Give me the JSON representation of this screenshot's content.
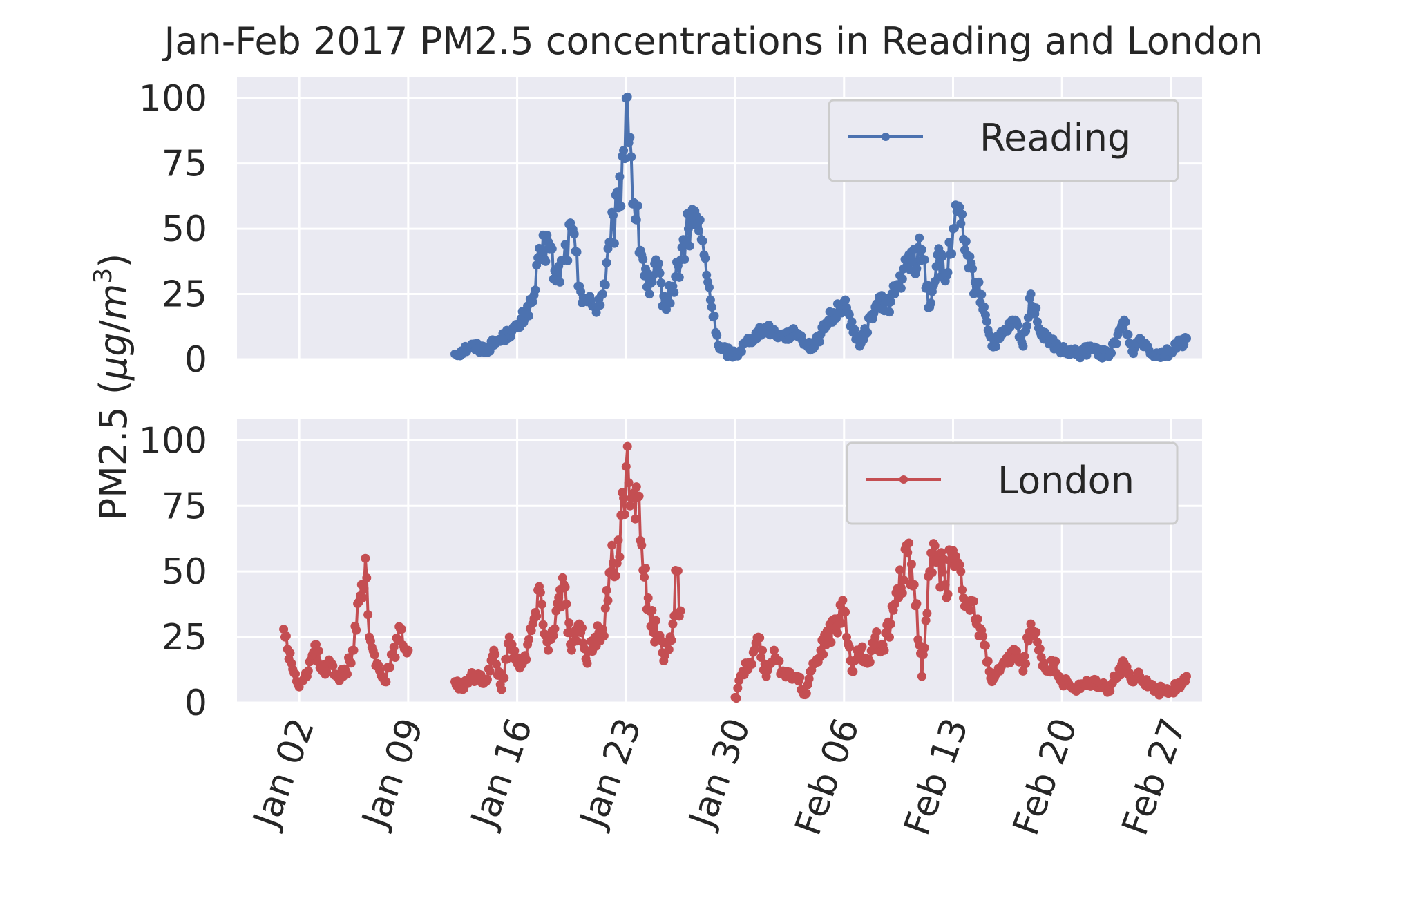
{
  "chart_data": {
    "type": "line",
    "title": "Jan-Feb 2017 PM2.5 concentrations in Reading and London",
    "ylabel": "PM2.5 (μg/m³)",
    "ylabel_parts": {
      "pre": "PM2.5 (",
      "mu": "μ",
      "g": "g",
      "slash": "/",
      "m": "m",
      "exp": "3",
      "post": ")"
    },
    "x_range": [
      "2016-12-29",
      "2017-03-01"
    ],
    "ylim": [
      0,
      108
    ],
    "y_ticks": [
      "0",
      "25",
      "50",
      "75",
      "100"
    ],
    "y_tick_values": [
      0,
      25,
      50,
      75,
      100
    ],
    "x_ticks": [
      {
        "label": "Jan 02",
        "date": "2017-01-02"
      },
      {
        "label": "Jan 09",
        "date": "2017-01-09"
      },
      {
        "label": "Jan 16",
        "date": "2017-01-16"
      },
      {
        "label": "Jan 23",
        "date": "2017-01-23"
      },
      {
        "label": "Jan 30",
        "date": "2017-01-30"
      },
      {
        "label": "Feb 06",
        "date": "2017-02-06"
      },
      {
        "label": "Feb 13",
        "date": "2017-02-13"
      },
      {
        "label": "Feb 20",
        "date": "2017-02-20"
      },
      {
        "label": "Feb 27",
        "date": "2017-02-27"
      }
    ],
    "grid": true,
    "legend_placement": "upper right",
    "series": [
      {
        "name": "Reading",
        "color": "#4c72b0",
        "anchors": [
          [
            "2017-01-12",
            2
          ],
          [
            "2017-01-13",
            5
          ],
          [
            "2017-01-14",
            4
          ],
          [
            "2017-01-15",
            8
          ],
          [
            "2017-01-16",
            12
          ],
          [
            "2017-01-17",
            22
          ],
          [
            "2017-01-17T12:00",
            40
          ],
          [
            "2017-01-18",
            45
          ],
          [
            "2017-01-18T12:00",
            30
          ],
          [
            "2017-01-19",
            38
          ],
          [
            "2017-01-19T12:00",
            50
          ],
          [
            "2017-01-20",
            28
          ],
          [
            "2017-01-20T12:00",
            22
          ],
          [
            "2017-01-21",
            20
          ],
          [
            "2017-01-21T12:00",
            25
          ],
          [
            "2017-01-22",
            45
          ],
          [
            "2017-01-22T12:00",
            58
          ],
          [
            "2017-01-22T20:00",
            80
          ],
          [
            "2017-01-23",
            100
          ],
          [
            "2017-01-23T06:00",
            85
          ],
          [
            "2017-01-23T12:00",
            60
          ],
          [
            "2017-01-24",
            40
          ],
          [
            "2017-01-24T12:00",
            25
          ],
          [
            "2017-01-25",
            35
          ],
          [
            "2017-01-25T12:00",
            20
          ],
          [
            "2017-01-26",
            28
          ],
          [
            "2017-01-26T12:00",
            38
          ],
          [
            "2017-01-27",
            50
          ],
          [
            "2017-01-27T12:00",
            55
          ],
          [
            "2017-01-28",
            40
          ],
          [
            "2017-01-28T12:00",
            20
          ],
          [
            "2017-01-29",
            4
          ],
          [
            "2017-01-30",
            2
          ],
          [
            "2017-01-31",
            8
          ],
          [
            "2017-02-01",
            12
          ],
          [
            "2017-02-02",
            9
          ],
          [
            "2017-02-03",
            10
          ],
          [
            "2017-02-04",
            4
          ],
          [
            "2017-02-05",
            15
          ],
          [
            "2017-02-06",
            22
          ],
          [
            "2017-02-07",
            5
          ],
          [
            "2017-02-08",
            20
          ],
          [
            "2017-02-09",
            22
          ],
          [
            "2017-02-10",
            35
          ],
          [
            "2017-02-11",
            42
          ],
          [
            "2017-02-11T12:00",
            20
          ],
          [
            "2017-02-12",
            40
          ],
          [
            "2017-02-12T12:00",
            30
          ],
          [
            "2017-02-13",
            50
          ],
          [
            "2017-02-13T12:00",
            52
          ],
          [
            "2017-02-14",
            35
          ],
          [
            "2017-02-14T12:00",
            28
          ],
          [
            "2017-02-15",
            20
          ],
          [
            "2017-02-15T12:00",
            5
          ],
          [
            "2017-02-16",
            8
          ],
          [
            "2017-02-17",
            15
          ],
          [
            "2017-02-17T12:00",
            5
          ],
          [
            "2017-02-18",
            25
          ],
          [
            "2017-02-18T12:00",
            12
          ],
          [
            "2017-02-19",
            8
          ],
          [
            "2017-02-20",
            3
          ],
          [
            "2017-02-21",
            2
          ],
          [
            "2017-02-22",
            4
          ],
          [
            "2017-02-23",
            1
          ],
          [
            "2017-02-24",
            15
          ],
          [
            "2017-02-24T12:00",
            3
          ],
          [
            "2017-02-25",
            8
          ],
          [
            "2017-02-26",
            2
          ],
          [
            "2017-02-27",
            3
          ],
          [
            "2017-02-28",
            8
          ]
        ]
      },
      {
        "name": "London",
        "color": "#c44e52",
        "anchors": [
          [
            "2017-01-01",
            28
          ],
          [
            "2017-01-01T12:00",
            15
          ],
          [
            "2017-01-02",
            6
          ],
          [
            "2017-01-02T12:00",
            10
          ],
          [
            "2017-01-03",
            22
          ],
          [
            "2017-01-03T12:00",
            12
          ],
          [
            "2017-01-04",
            15
          ],
          [
            "2017-01-04T12:00",
            10
          ],
          [
            "2017-01-05",
            12
          ],
          [
            "2017-01-05T12:00",
            20
          ],
          [
            "2017-01-06",
            45
          ],
          [
            "2017-01-06T06:00",
            55
          ],
          [
            "2017-01-06T12:00",
            25
          ],
          [
            "2017-01-07",
            15
          ],
          [
            "2017-01-07T12:00",
            8
          ],
          [
            "2017-01-08",
            18
          ],
          [
            "2017-01-08T12:00",
            28
          ],
          [
            "2017-01-09",
            20
          ],
          [
            "2017-01-12",
            8
          ],
          [
            "2017-01-12T12:00",
            5
          ],
          [
            "2017-01-13",
            10
          ],
          [
            "2017-01-14",
            8
          ],
          [
            "2017-01-14T12:00",
            20
          ],
          [
            "2017-01-15",
            5
          ],
          [
            "2017-01-15T12:00",
            25
          ],
          [
            "2017-01-16",
            15
          ],
          [
            "2017-01-16T12:00",
            18
          ],
          [
            "2017-01-17",
            30
          ],
          [
            "2017-01-17T12:00",
            42
          ],
          [
            "2017-01-18",
            20
          ],
          [
            "2017-01-18T12:00",
            35
          ],
          [
            "2017-01-19",
            45
          ],
          [
            "2017-01-19T12:00",
            20
          ],
          [
            "2017-01-20",
            30
          ],
          [
            "2017-01-20T12:00",
            15
          ],
          [
            "2017-01-21",
            25
          ],
          [
            "2017-01-21T12:00",
            28
          ],
          [
            "2017-01-22",
            50
          ],
          [
            "2017-01-22T12:00",
            62
          ],
          [
            "2017-01-22T20:00",
            78
          ],
          [
            "2017-01-23",
            90
          ],
          [
            "2017-01-23T06:00",
            75
          ],
          [
            "2017-01-23T12:00",
            80
          ],
          [
            "2017-01-24",
            60
          ],
          [
            "2017-01-24T12:00",
            35
          ],
          [
            "2017-01-25",
            25
          ],
          [
            "2017-01-25T12:00",
            18
          ],
          [
            "2017-01-26",
            30
          ],
          [
            "2017-01-26T06:00",
            50
          ],
          [
            "2017-01-26T12:00",
            35
          ],
          [
            "2017-01-30",
            2
          ],
          [
            "2017-01-30T12:00",
            12
          ],
          [
            "2017-01-31",
            15
          ],
          [
            "2017-01-31T12:00",
            25
          ],
          [
            "2017-02-01",
            10
          ],
          [
            "2017-02-01T12:00",
            20
          ],
          [
            "2017-02-02",
            12
          ],
          [
            "2017-02-03",
            10
          ],
          [
            "2017-02-03T12:00",
            3
          ],
          [
            "2017-02-04",
            15
          ],
          [
            "2017-02-04T12:00",
            20
          ],
          [
            "2017-02-05",
            25
          ],
          [
            "2017-02-06",
            35
          ],
          [
            "2017-02-06T12:00",
            12
          ],
          [
            "2017-02-07",
            20
          ],
          [
            "2017-02-07T12:00",
            15
          ],
          [
            "2017-02-08",
            25
          ],
          [
            "2017-02-08T12:00",
            22
          ],
          [
            "2017-02-09",
            30
          ],
          [
            "2017-02-09T12:00",
            40
          ],
          [
            "2017-02-10",
            60
          ],
          [
            "2017-02-10T12:00",
            45
          ],
          [
            "2017-02-11",
            10
          ],
          [
            "2017-02-11T12:00",
            50
          ],
          [
            "2017-02-12",
            55
          ],
          [
            "2017-02-12T12:00",
            45
          ],
          [
            "2017-02-13",
            58
          ],
          [
            "2017-02-13T12:00",
            50
          ],
          [
            "2017-02-14",
            38
          ],
          [
            "2017-02-14T12:00",
            30
          ],
          [
            "2017-02-15",
            22
          ],
          [
            "2017-02-15T12:00",
            8
          ],
          [
            "2017-02-16",
            12
          ],
          [
            "2017-02-16T12:00",
            15
          ],
          [
            "2017-02-17",
            20
          ],
          [
            "2017-02-17T12:00",
            12
          ],
          [
            "2017-02-18",
            30
          ],
          [
            "2017-02-18T12:00",
            20
          ],
          [
            "2017-02-19",
            12
          ],
          [
            "2017-02-19T12:00",
            15
          ],
          [
            "2017-02-20",
            8
          ],
          [
            "2017-02-21",
            5
          ],
          [
            "2017-02-22",
            8
          ],
          [
            "2017-02-23",
            5
          ],
          [
            "2017-02-24",
            15
          ],
          [
            "2017-02-24T12:00",
            8
          ],
          [
            "2017-02-25",
            10
          ],
          [
            "2017-02-26",
            5
          ],
          [
            "2017-02-27",
            4
          ],
          [
            "2017-02-28",
            10
          ]
        ]
      }
    ]
  }
}
